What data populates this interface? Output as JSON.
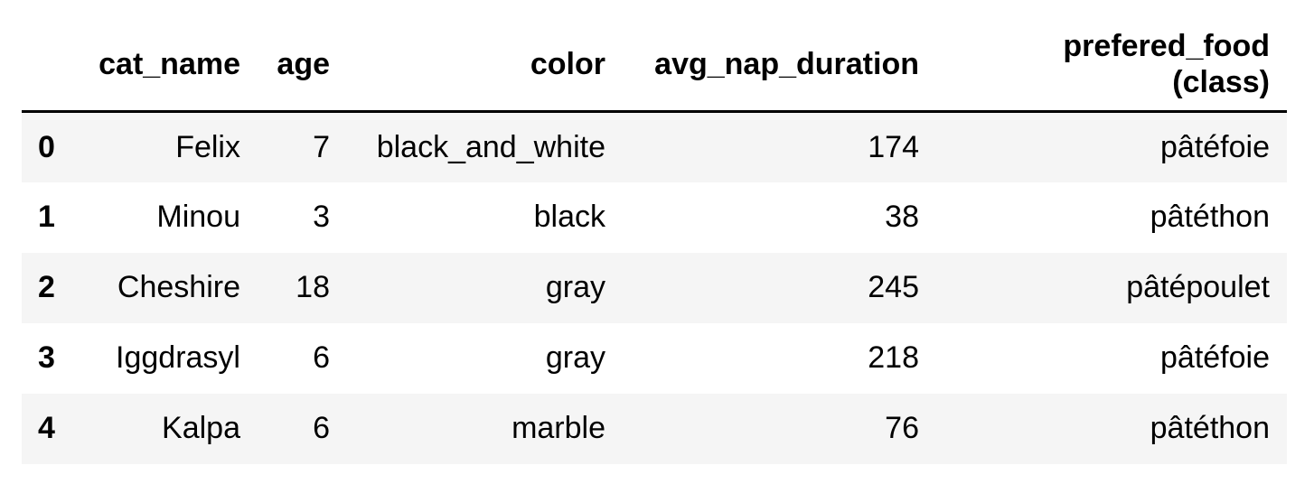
{
  "table": {
    "columns": [
      {
        "line1": "",
        "line2": ""
      },
      {
        "line1": "cat_name",
        "line2": ""
      },
      {
        "line1": "age",
        "line2": ""
      },
      {
        "line1": "color",
        "line2": ""
      },
      {
        "line1": "avg_nap_duration",
        "line2": ""
      },
      {
        "line1": "prefered_food",
        "line2": "(class)"
      }
    ],
    "rows": [
      {
        "index": "0",
        "cat_name": "Felix",
        "age": "7",
        "color": "black_and_white",
        "avg_nap_duration": "174",
        "prefered_food": "pâtéfoie"
      },
      {
        "index": "1",
        "cat_name": "Minou",
        "age": "3",
        "color": "black",
        "avg_nap_duration": "38",
        "prefered_food": "pâtéthon"
      },
      {
        "index": "2",
        "cat_name": "Cheshire",
        "age": "18",
        "color": "gray",
        "avg_nap_duration": "245",
        "prefered_food": "pâtépoulet"
      },
      {
        "index": "3",
        "cat_name": "Iggdrasyl",
        "age": "6",
        "color": "gray",
        "avg_nap_duration": "218",
        "prefered_food": "pâtéfoie"
      },
      {
        "index": "4",
        "cat_name": "Kalpa",
        "age": "6",
        "color": "marble",
        "avg_nap_duration": "76",
        "prefered_food": "pâtéthon"
      }
    ]
  },
  "colors": {
    "stripe": "#f5f5f5",
    "header_rule": "#000000"
  }
}
